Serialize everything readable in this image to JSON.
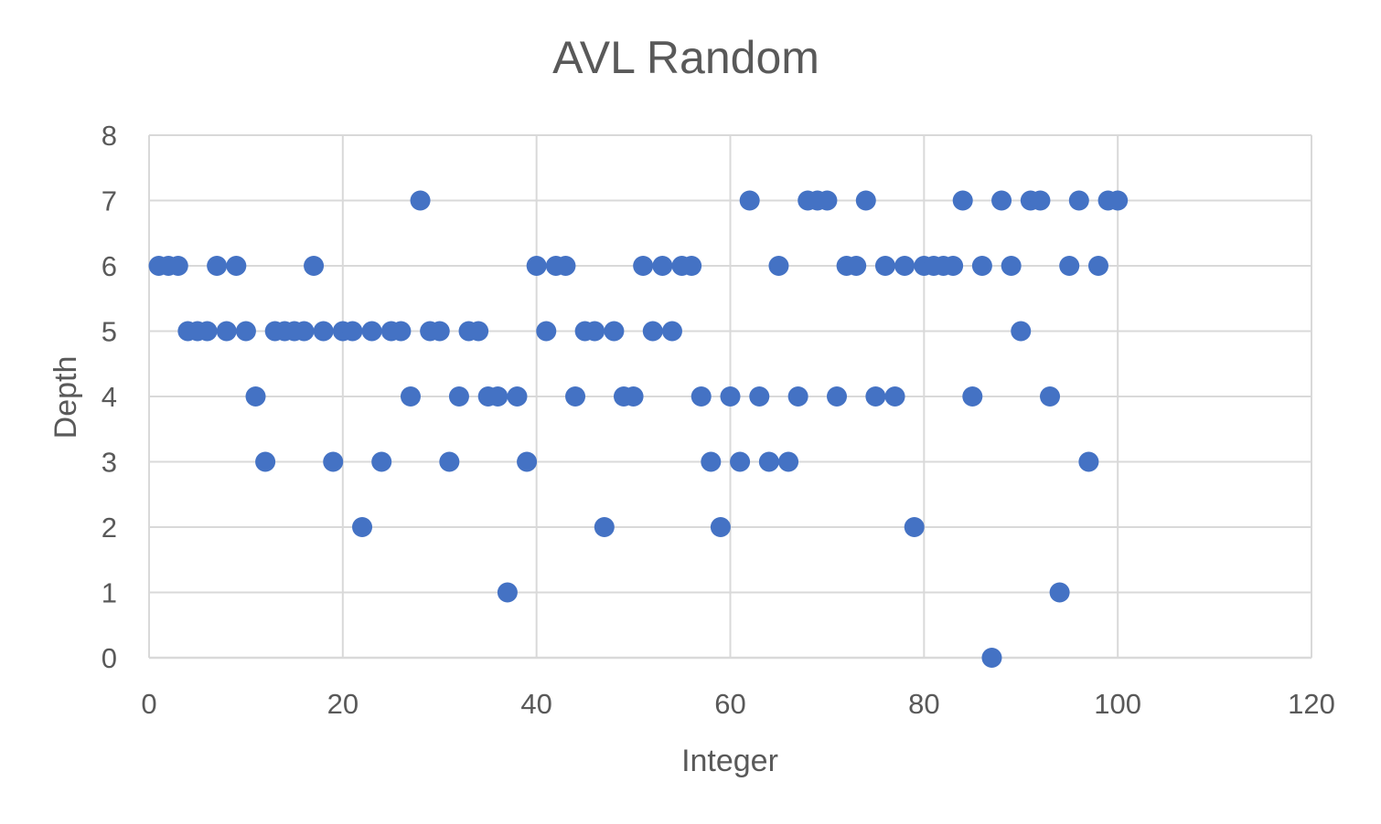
{
  "chart_data": {
    "type": "scatter",
    "title": "AVL Random",
    "xlabel": "Integer",
    "ylabel": "Depth",
    "xlim": [
      0,
      120
    ],
    "ylim": [
      0,
      8
    ],
    "x_ticks": [
      "0",
      "20",
      "40",
      "60",
      "80",
      "100",
      "120"
    ],
    "y_ticks": [
      "0",
      "1",
      "2",
      "3",
      "4",
      "5",
      "6",
      "7",
      "8"
    ],
    "grid": true,
    "legend": "none",
    "marker_color": "#4472c4",
    "series": [
      {
        "points": [
          [
            1,
            6
          ],
          [
            2,
            6
          ],
          [
            3,
            6
          ],
          [
            4,
            5
          ],
          [
            5,
            5
          ],
          [
            6,
            5
          ],
          [
            7,
            6
          ],
          [
            8,
            5
          ],
          [
            9,
            6
          ],
          [
            10,
            5
          ],
          [
            11,
            4
          ],
          [
            12,
            3
          ],
          [
            13,
            5
          ],
          [
            14,
            5
          ],
          [
            15,
            5
          ],
          [
            16,
            5
          ],
          [
            17,
            6
          ],
          [
            18,
            5
          ],
          [
            19,
            3
          ],
          [
            20,
            5
          ],
          [
            21,
            5
          ],
          [
            22,
            2
          ],
          [
            23,
            5
          ],
          [
            24,
            3
          ],
          [
            25,
            5
          ],
          [
            26,
            5
          ],
          [
            27,
            4
          ],
          [
            28,
            7
          ],
          [
            29,
            5
          ],
          [
            30,
            5
          ],
          [
            31,
            3
          ],
          [
            32,
            4
          ],
          [
            33,
            5
          ],
          [
            34,
            5
          ],
          [
            35,
            4
          ],
          [
            36,
            4
          ],
          [
            37,
            1
          ],
          [
            38,
            4
          ],
          [
            39,
            3
          ],
          [
            40,
            6
          ],
          [
            41,
            5
          ],
          [
            42,
            6
          ],
          [
            43,
            6
          ],
          [
            44,
            4
          ],
          [
            45,
            5
          ],
          [
            46,
            5
          ],
          [
            47,
            2
          ],
          [
            48,
            5
          ],
          [
            49,
            4
          ],
          [
            50,
            4
          ],
          [
            51,
            6
          ],
          [
            52,
            5
          ],
          [
            53,
            6
          ],
          [
            54,
            5
          ],
          [
            55,
            6
          ],
          [
            56,
            6
          ],
          [
            57,
            4
          ],
          [
            58,
            3
          ],
          [
            59,
            2
          ],
          [
            60,
            4
          ],
          [
            61,
            3
          ],
          [
            62,
            7
          ],
          [
            63,
            4
          ],
          [
            64,
            3
          ],
          [
            65,
            6
          ],
          [
            66,
            3
          ],
          [
            67,
            4
          ],
          [
            68,
            7
          ],
          [
            69,
            7
          ],
          [
            70,
            7
          ],
          [
            71,
            4
          ],
          [
            72,
            6
          ],
          [
            73,
            6
          ],
          [
            74,
            7
          ],
          [
            75,
            4
          ],
          [
            76,
            6
          ],
          [
            77,
            4
          ],
          [
            78,
            6
          ],
          [
            79,
            2
          ],
          [
            80,
            6
          ],
          [
            81,
            6
          ],
          [
            82,
            6
          ],
          [
            83,
            6
          ],
          [
            84,
            7
          ],
          [
            85,
            4
          ],
          [
            86,
            6
          ],
          [
            87,
            0
          ],
          [
            88,
            7
          ],
          [
            89,
            6
          ],
          [
            90,
            5
          ],
          [
            91,
            7
          ],
          [
            92,
            7
          ],
          [
            93,
            4
          ],
          [
            94,
            1
          ],
          [
            95,
            6
          ],
          [
            96,
            7
          ],
          [
            97,
            3
          ],
          [
            98,
            6
          ],
          [
            99,
            7
          ],
          [
            100,
            7
          ]
        ]
      }
    ]
  }
}
